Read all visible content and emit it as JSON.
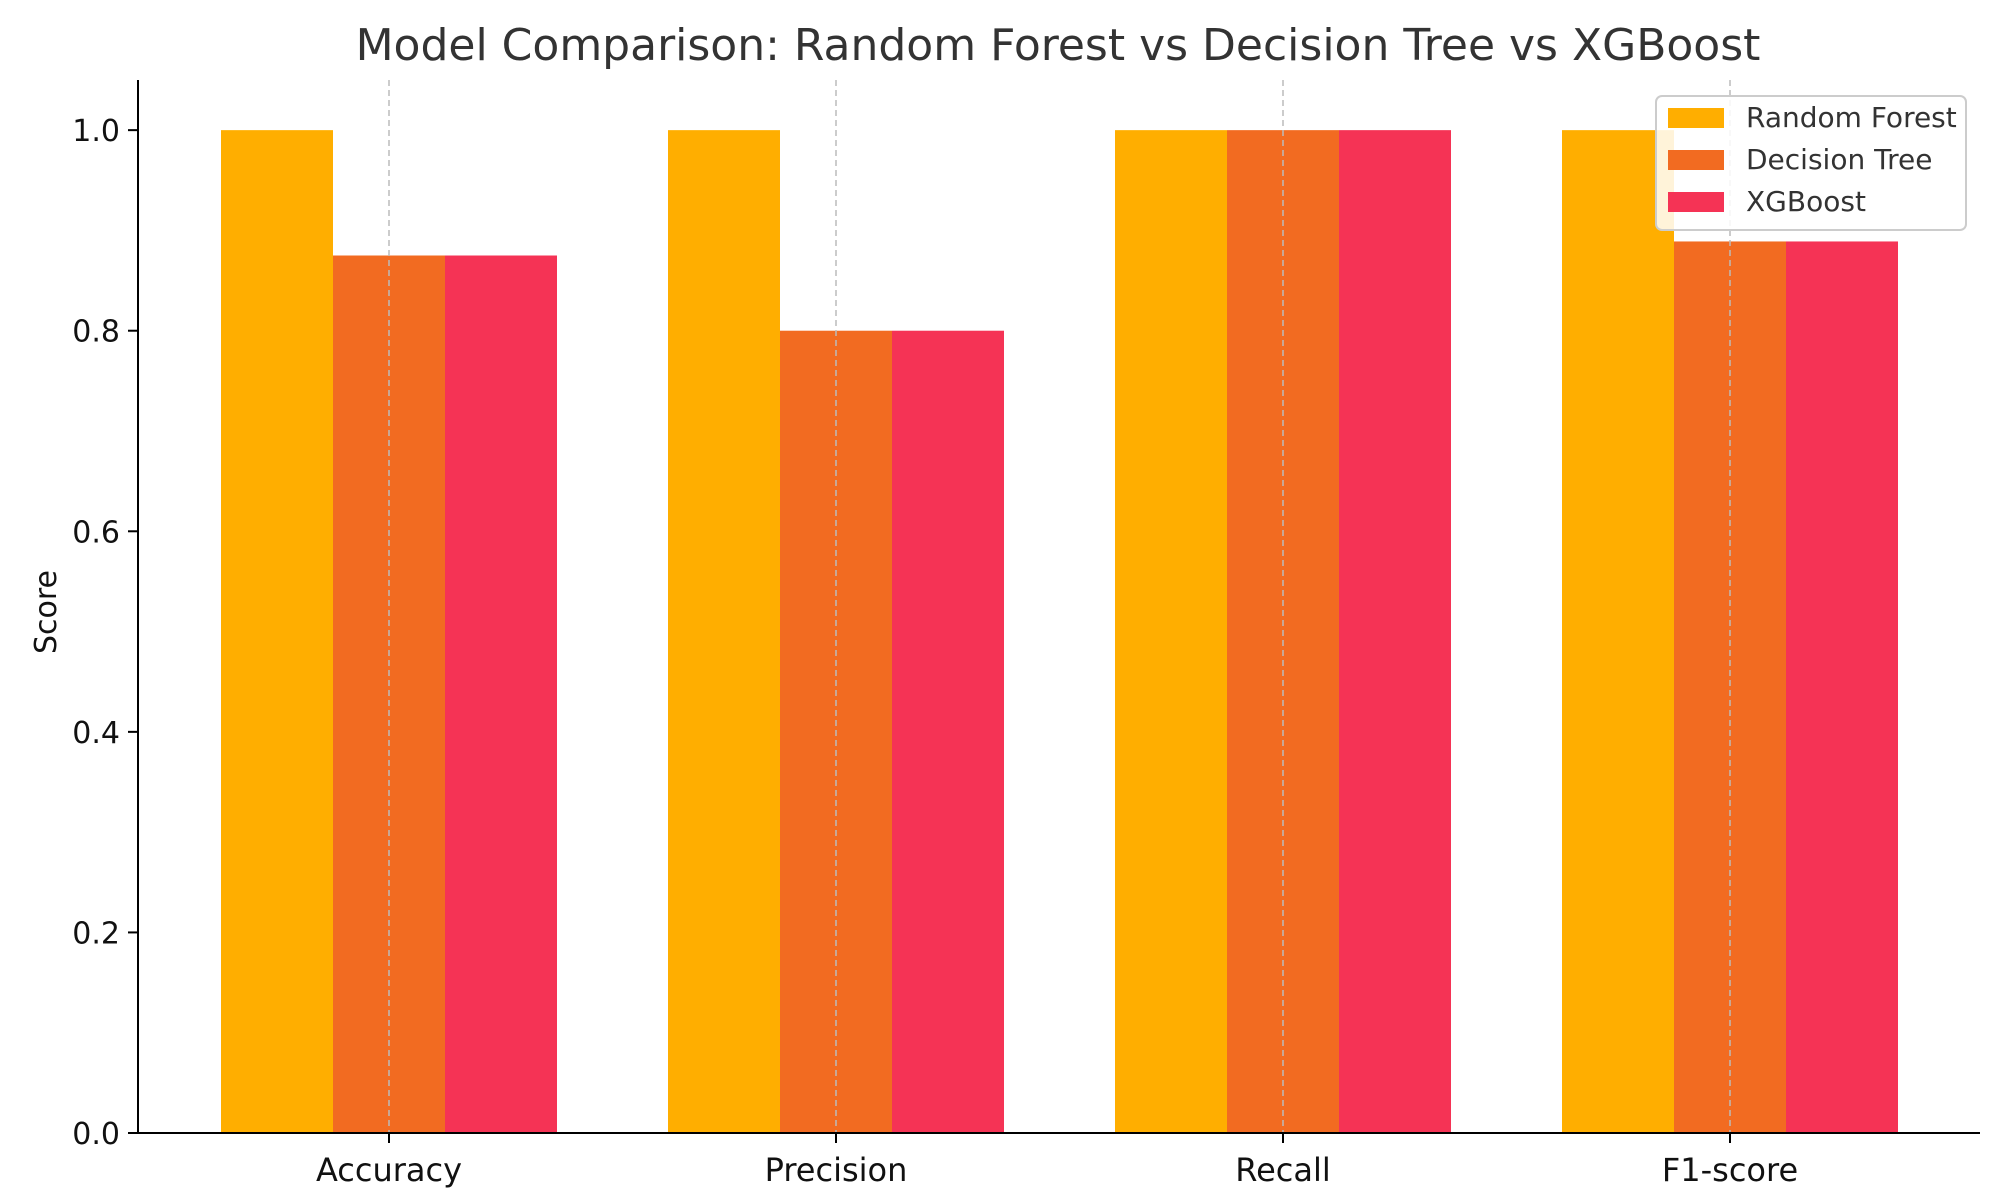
{
  "chart_data": {
    "type": "bar",
    "title": "Model Comparison: Random Forest vs Decision Tree vs XGBoost",
    "xlabel": "",
    "ylabel": "Score",
    "ylim": [
      0,
      1.05
    ],
    "yticks": [
      0.0,
      0.2,
      0.4,
      0.6,
      0.8,
      1.0
    ],
    "ytick_labels": [
      "0.0",
      "0.2",
      "0.4",
      "0.6",
      "0.8",
      "1.0"
    ],
    "categories": [
      "Accuracy",
      "Precision",
      "Recall",
      "F1-score"
    ],
    "series": [
      {
        "name": "Random Forest",
        "color": "#FFAE00",
        "values": [
          1.0,
          1.0,
          1.0,
          1.0
        ]
      },
      {
        "name": "Decision Tree",
        "color": "#F26B21",
        "values": [
          0.875,
          0.8,
          1.0,
          0.889
        ]
      },
      {
        "name": "XGBoost",
        "color": "#F53355",
        "values": [
          0.875,
          0.8,
          1.0,
          0.889
        ]
      }
    ],
    "grid": {
      "x": true,
      "y": false,
      "style": "dashed",
      "color": "#BBBBBB"
    },
    "legend": {
      "position": "top-right"
    }
  }
}
